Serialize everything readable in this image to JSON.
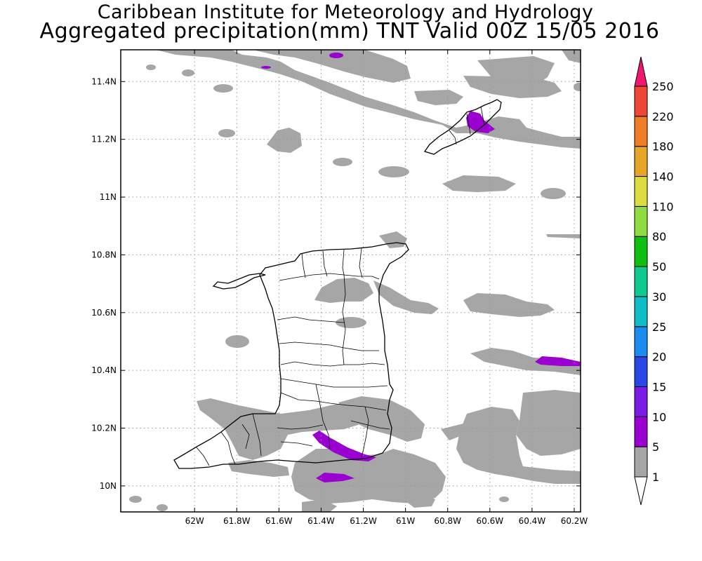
{
  "header": {
    "title": "Caribbean Institute for Meteorology and Hydrology",
    "subtitle": "Aggregated precipitation(mm) TNT Valid 00Z 15/05 2016"
  },
  "map": {
    "lon_range": [
      -62.35,
      -60.17
    ],
    "lat_range": [
      9.91,
      11.51
    ],
    "lon_ticks": [
      {
        "value": -62.0,
        "label": "62W"
      },
      {
        "value": -61.8,
        "label": "61.8W"
      },
      {
        "value": -61.6,
        "label": "61.6W"
      },
      {
        "value": -61.4,
        "label": "61.4W"
      },
      {
        "value": -61.2,
        "label": "61.2W"
      },
      {
        "value": -61.0,
        "label": "61W"
      },
      {
        "value": -60.8,
        "label": "60.8W"
      },
      {
        "value": -60.6,
        "label": "60.6W"
      },
      {
        "value": -60.4,
        "label": "60.4W"
      },
      {
        "value": -60.2,
        "label": "60.2W"
      }
    ],
    "lat_ticks": [
      {
        "value": 10.0,
        "label": "10N"
      },
      {
        "value": 10.2,
        "label": "10.2N"
      },
      {
        "value": 10.4,
        "label": "10.4N"
      },
      {
        "value": 10.6,
        "label": "10.6N"
      },
      {
        "value": 10.8,
        "label": "10.8N"
      },
      {
        "value": 11.0,
        "label": "11N"
      },
      {
        "value": 11.2,
        "label": "11.2N"
      },
      {
        "value": 11.4,
        "label": "11.4N"
      }
    ],
    "grid": true,
    "colors": {
      "rain_1_5": "#a6a6a6",
      "rain_5_10": "#9a00d0",
      "land_border": "#000000"
    }
  },
  "colorbar": {
    "levels": [
      "1",
      "5",
      "10",
      "15",
      "20",
      "25",
      "30",
      "50",
      "80",
      "110",
      "140",
      "180",
      "220",
      "250"
    ],
    "colors": [
      "#a6a6a6",
      "#9a00d0",
      "#7a1ae6",
      "#2a46e8",
      "#1a8cf0",
      "#10bcc8",
      "#10c890",
      "#10c010",
      "#90dc40",
      "#dcdc40",
      "#e6a628",
      "#f07e28",
      "#f04638",
      "#f0186e"
    ],
    "below_color": "#ffffff"
  }
}
